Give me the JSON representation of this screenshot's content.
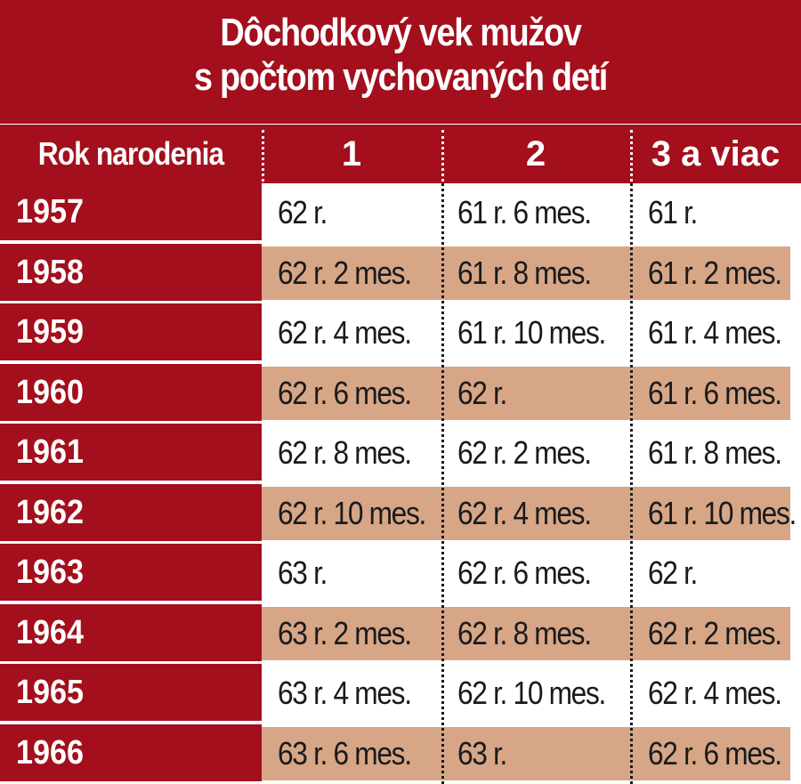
{
  "chart_data": {
    "type": "table",
    "title_lines": [
      "Dôchodkový vek mužov",
      "s počtom vychovaných detí"
    ],
    "columns": [
      "Rok narodenia",
      "1",
      "2",
      "3 a viac"
    ],
    "rows": [
      [
        "1957",
        "62 r.",
        "61 r. 6 mes.",
        "61 r."
      ],
      [
        "1958",
        "62 r. 2 mes.",
        "61 r. 8 mes.",
        "61 r. 2 mes."
      ],
      [
        "1959",
        "62 r. 4 mes.",
        "61 r. 10 mes.",
        "61 r. 4 mes."
      ],
      [
        "1960",
        "62 r. 6 mes.",
        "62 r.",
        "61 r. 6 mes."
      ],
      [
        "1961",
        "62 r. 8 mes.",
        "62 r. 2 mes.",
        "61 r. 8 mes."
      ],
      [
        "1962",
        "62 r. 10 mes.",
        "62 r. 4 mes.",
        "61 r. 10 mes."
      ],
      [
        "1963",
        "63 r.",
        "62 r. 6 mes.",
        "62 r."
      ],
      [
        "1964",
        "63 r. 2 mes.",
        "62 r. 8 mes.",
        "62 r. 2 mes."
      ],
      [
        "1965",
        "63 r. 4 mes.",
        "62 r. 10 mes.",
        "62 r. 4 mes."
      ],
      [
        "1966",
        "63 r. 6 mes.",
        "63 r.",
        "62 r. 6 mes."
      ]
    ]
  },
  "colors": {
    "header_red": "#a30f1d",
    "band_tan": "#d6a687",
    "text_dark": "#1a1a1a",
    "text_light": "#ffffff"
  }
}
